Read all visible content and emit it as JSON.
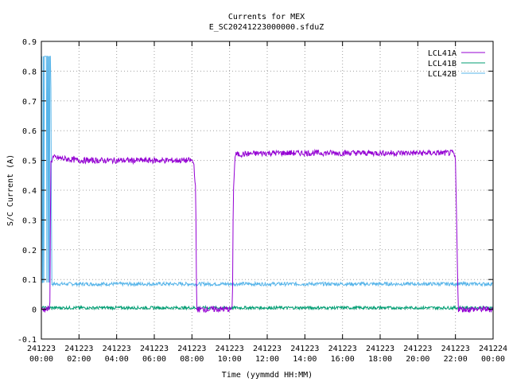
{
  "chart_data": {
    "type": "line",
    "title": "Currents for MEX",
    "subtitle": "E_SC20241223000000.sfduZ",
    "xlabel": "Time (yymmdd HH:MM)",
    "ylabel": "S/C Current (A)",
    "ylim": [
      -0.1,
      0.9
    ],
    "yticks": [
      "-0.1",
      "0",
      "0.1",
      "0.2",
      "0.3",
      "0.4",
      "0.5",
      "0.6",
      "0.7",
      "0.8",
      "0.9"
    ],
    "xlim_hours": [
      0,
      24
    ],
    "xticks": [
      {
        "hour": 0,
        "date": "241223",
        "time": "00:00"
      },
      {
        "hour": 2,
        "date": "241223",
        "time": "02:00"
      },
      {
        "hour": 4,
        "date": "241223",
        "time": "04:00"
      },
      {
        "hour": 6,
        "date": "241223",
        "time": "06:00"
      },
      {
        "hour": 8,
        "date": "241223",
        "time": "08:00"
      },
      {
        "hour": 10,
        "date": "241223",
        "time": "10:00"
      },
      {
        "hour": 12,
        "date": "241223",
        "time": "12:00"
      },
      {
        "hour": 14,
        "date": "241223",
        "time": "14:00"
      },
      {
        "hour": 16,
        "date": "241223",
        "time": "16:00"
      },
      {
        "hour": 18,
        "date": "241223",
        "time": "18:00"
      },
      {
        "hour": 20,
        "date": "241223",
        "time": "20:00"
      },
      {
        "hour": 22,
        "date": "241223",
        "time": "22:00"
      },
      {
        "hour": 24,
        "date": "241224",
        "time": "00:00"
      }
    ],
    "grid": true,
    "legend_position": "top-right",
    "series": [
      {
        "name": "LCL41A",
        "color": "#9400d3",
        "points": [
          [
            0,
            0
          ],
          [
            0.45,
            0
          ],
          [
            0.5,
            0.49
          ],
          [
            0.6,
            0.51
          ],
          [
            2,
            0.5
          ],
          [
            4,
            0.5
          ],
          [
            6,
            0.5
          ],
          [
            8,
            0.5
          ],
          [
            8.1,
            0.49
          ],
          [
            8.2,
            0.4
          ],
          [
            8.25,
            0
          ],
          [
            10.15,
            0
          ],
          [
            10.2,
            0.4
          ],
          [
            10.3,
            0.52
          ],
          [
            12,
            0.525
          ],
          [
            16,
            0.525
          ],
          [
            20,
            0.525
          ],
          [
            21.9,
            0.525
          ],
          [
            22,
            0.5
          ],
          [
            22.15,
            0
          ],
          [
            24,
            0
          ]
        ],
        "noise": 0.01
      },
      {
        "name": "LCL41B",
        "color": "#009e73",
        "points": [
          [
            0,
            0.005
          ],
          [
            24,
            0.005
          ]
        ],
        "noise": 0.005
      },
      {
        "name": "LCL42B",
        "color": "#56b4e9",
        "points": [
          [
            0,
            0.85
          ],
          [
            0.5,
            0.85
          ],
          [
            0.55,
            0.085
          ],
          [
            24,
            0.085
          ]
        ],
        "noise": 0.006
      }
    ]
  }
}
